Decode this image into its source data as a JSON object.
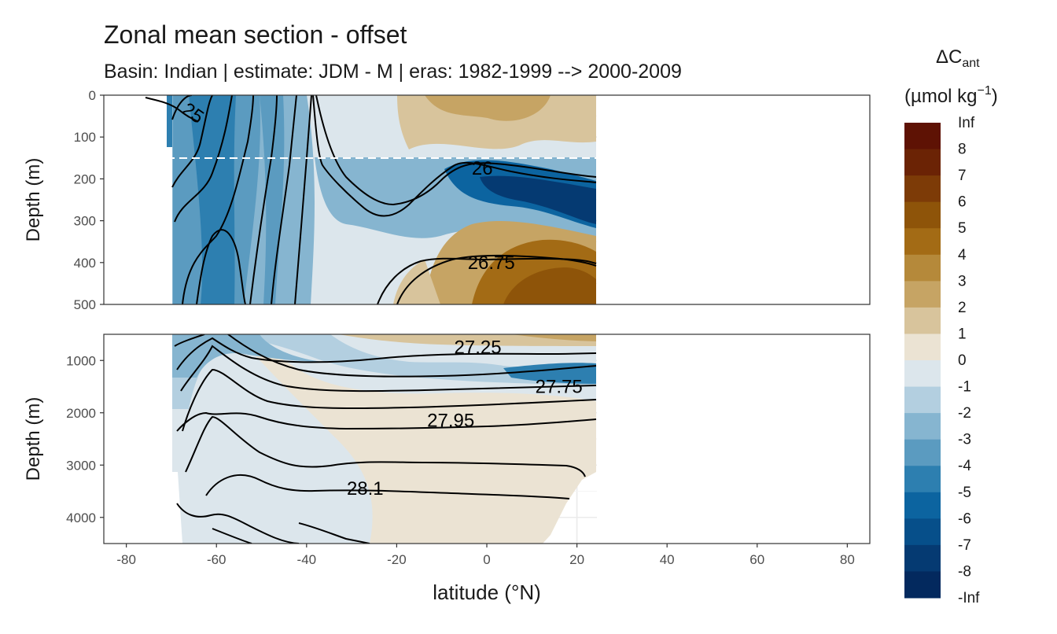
{
  "chart_data": {
    "type": "heatmap",
    "title": "Zonal mean section - offset",
    "subtitle": "Basin: Indian | estimate: JDM - M | eras: 1982-1999 --> 2000-2009",
    "xlabel": "latitude (°N)",
    "x_ticks": [
      -80,
      -60,
      -40,
      -20,
      0,
      20,
      40,
      60,
      80
    ],
    "xlim": [
      -85,
      85
    ],
    "data_extent_lat": [
      -70,
      24.5
    ],
    "reference_line_depth": 150,
    "panels": [
      {
        "name": "upper",
        "ylabel": "Depth (m)",
        "ylim": [
          0,
          500
        ],
        "y_ticks": [
          0,
          100,
          200,
          300,
          400,
          500
        ],
        "y_tick_labels": [
          "0",
          "100",
          "200",
          "300",
          "400",
          "500"
        ],
        "isopycnal_labels": [
          {
            "text": "25",
            "lat": -66,
            "depth": 40
          },
          {
            "text": "26",
            "lat": -1,
            "depth": 175
          },
          {
            "text": "26.75",
            "lat": 1,
            "depth": 400
          }
        ]
      },
      {
        "name": "lower",
        "ylabel": "Depth (m)",
        "ylim": [
          500,
          4500
        ],
        "y_ticks": [
          1000,
          2000,
          3000,
          4000
        ],
        "y_tick_labels": [
          "1000",
          "2000",
          "3000",
          "4000"
        ],
        "isopycnal_labels": [
          {
            "text": "27.25",
            "lat": -2,
            "depth": 750
          },
          {
            "text": "27.75",
            "lat": 16,
            "depth": 1500
          },
          {
            "text": "27.95",
            "lat": -8,
            "depth": 2150
          },
          {
            "text": "28.1",
            "lat": -27,
            "depth": 3450
          }
        ]
      }
    ],
    "legend": {
      "title_main": "ΔC",
      "title_sub": "ant",
      "unit_text": "(µmol kg",
      "unit_sup": "−1",
      "unit_close": ")",
      "bins": [
        {
          "label": "Inf",
          "color": "#5e1204"
        },
        {
          "label": "8",
          "color": "#6b2305"
        },
        {
          "label": "7",
          "color": "#7d3b07"
        },
        {
          "label": "6",
          "color": "#8e5409"
        },
        {
          "label": "5",
          "color": "#a36b15"
        },
        {
          "label": "4",
          "color": "#b5893a"
        },
        {
          "label": "3",
          "color": "#c6a464"
        },
        {
          "label": "2",
          "color": "#d8c49c"
        },
        {
          "label": "1",
          "color": "#ebe3d3"
        },
        {
          "label": "0",
          "color": "#dce6ec"
        },
        {
          "label": "-1",
          "color": "#b3cfe0"
        },
        {
          "label": "-2",
          "color": "#86b5d0"
        },
        {
          "label": "-3",
          "color": "#5b9bc0"
        },
        {
          "label": "-4",
          "color": "#2d7fb0"
        },
        {
          "label": "-5",
          "color": "#0c64a0"
        },
        {
          "label": "-6",
          "color": "#064f8a"
        },
        {
          "label": "-7",
          "color": "#053a72"
        },
        {
          "label": "-8",
          "color": "#03295e"
        },
        {
          "label": "-Inf",
          "color": "#011b58"
        }
      ]
    }
  }
}
